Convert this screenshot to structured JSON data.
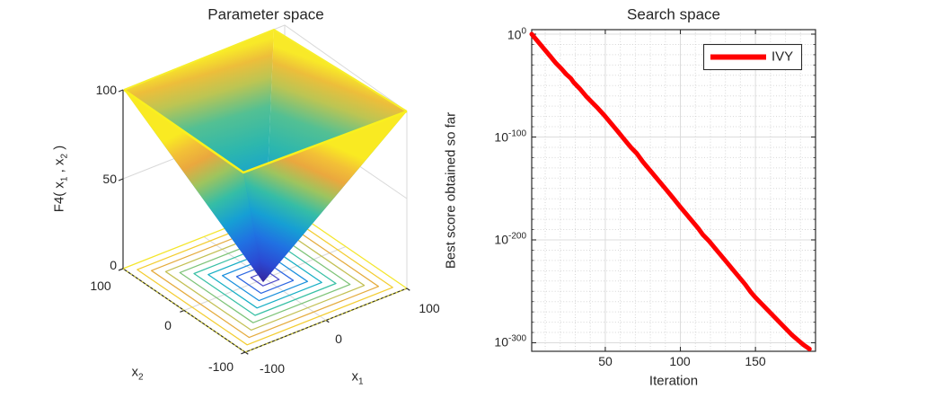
{
  "figure": {
    "background": "#ffffff",
    "text_color": "#262626"
  },
  "parameter_plot": {
    "title": "Parameter space",
    "zlabel": {
      "p1": "F4( x",
      "s1": "1",
      "p2": " , x",
      "s2": "2",
      "p3": " )"
    },
    "x1label": {
      "base": "x",
      "sub": "1"
    },
    "x2label": {
      "base": "x",
      "sub": "2"
    },
    "zticks": [
      "100",
      "50",
      "0"
    ],
    "x1_ticks": [
      "-100",
      "0",
      "100"
    ],
    "x2_ticks": [
      "100",
      "0",
      "-100"
    ]
  },
  "search_plot": {
    "title": "Search space",
    "xlabel": "Iteration",
    "ylabel": "Best score obtained so far",
    "xticks": [
      "50",
      "100",
      "150"
    ],
    "yticks": [
      {
        "base": "10",
        "exp": "0"
      },
      {
        "base": "10",
        "exp": "-100"
      },
      {
        "base": "10",
        "exp": "-200"
      },
      {
        "base": "10",
        "exp": "-300"
      }
    ],
    "legend": {
      "label": "IVY",
      "line_color": "#ff0000"
    }
  },
  "chart_data": [
    {
      "type": "surface3d_contour",
      "title": "Parameter space",
      "function_label": "F4( x1 , x2 )",
      "shape": "inverted square cone (max(|x1|,|x2|)) with contour projection at z=0",
      "xlim": [
        -100,
        100
      ],
      "ylim": [
        -100,
        100
      ],
      "zlim": [
        0,
        100
      ],
      "xticks": [
        -100,
        0,
        100
      ],
      "yticks": [
        -100,
        0,
        100
      ],
      "zticks": [
        0,
        50,
        100
      ],
      "colormap": "parula",
      "contour_rings": [
        {
          "level": 100,
          "color": "#f4e62c"
        },
        {
          "level": 90,
          "color": "#f3cd31"
        },
        {
          "level": 80,
          "color": "#e5ab3e"
        },
        {
          "level": 70,
          "color": "#c3c054"
        },
        {
          "level": 60,
          "color": "#7fc479"
        },
        {
          "level": 50,
          "color": "#39c0a5"
        },
        {
          "level": 40,
          "color": "#18afc5"
        },
        {
          "level": 30,
          "color": "#1b90dd"
        },
        {
          "level": 20,
          "color": "#2e68e2"
        },
        {
          "level": 10,
          "color": "#5150cb"
        }
      ]
    },
    {
      "type": "line",
      "title": "Search space",
      "xlabel": "Iteration",
      "ylabel": "Best score obtained so far",
      "xlim": [
        1,
        190
      ],
      "yscale": "log",
      "ytick_exponents": [
        0,
        -100,
        -200,
        -300
      ],
      "xticks": [
        50,
        100,
        150
      ],
      "grid": "major solid + minor dotted",
      "legend_position": "northeast",
      "series": [
        {
          "name": "IVY",
          "color": "#ff0000",
          "line_width": 5,
          "points_iter_log10": [
            [
              1,
              0
            ],
            [
              5,
              -7
            ],
            [
              9,
              -14
            ],
            [
              13,
              -21
            ],
            [
              17,
              -28
            ],
            [
              21,
              -34
            ],
            [
              24,
              -39
            ],
            [
              27,
              -43
            ],
            [
              29,
              -47
            ],
            [
              33,
              -53
            ],
            [
              37,
              -60
            ],
            [
              41,
              -66
            ],
            [
              45,
              -72
            ],
            [
              50,
              -80
            ],
            [
              54,
              -87
            ],
            [
              58,
              -94
            ],
            [
              63,
              -103
            ],
            [
              67,
              -110
            ],
            [
              71,
              -116
            ],
            [
              75,
              -124
            ],
            [
              79,
              -131
            ],
            [
              83,
              -138
            ],
            [
              87,
              -145
            ],
            [
              91,
              -152
            ],
            [
              95,
              -159
            ],
            [
              100,
              -168
            ],
            [
              104,
              -175
            ],
            [
              108,
              -182
            ],
            [
              112,
              -189
            ],
            [
              115,
              -195
            ],
            [
              119,
              -201
            ],
            [
              123,
              -208
            ],
            [
              127,
              -215
            ],
            [
              131,
              -222
            ],
            [
              135,
              -229
            ],
            [
              139,
              -236
            ],
            [
              143,
              -243
            ],
            [
              147,
              -251
            ],
            [
              150,
              -256
            ],
            [
              154,
              -262
            ],
            [
              158,
              -268
            ],
            [
              162,
              -274
            ],
            [
              166,
              -280
            ],
            [
              170,
              -286
            ],
            [
              174,
              -292
            ],
            [
              178,
              -297
            ],
            [
              182,
              -302
            ],
            [
              186,
              -306
            ]
          ]
        }
      ]
    }
  ]
}
